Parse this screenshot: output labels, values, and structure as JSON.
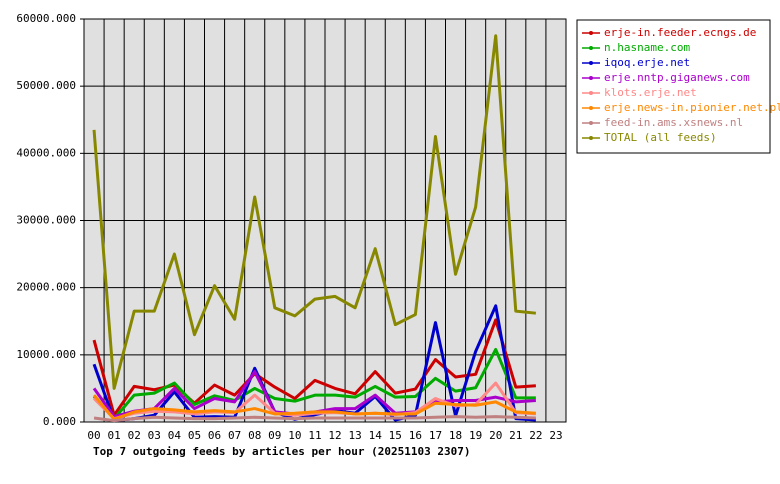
{
  "chart_data": {
    "type": "line",
    "title": "Top 7 outgoing feeds by articles per hour (20251103 2307)",
    "categories": [
      "00",
      "01",
      "02",
      "03",
      "04",
      "05",
      "06",
      "07",
      "08",
      "09",
      "10",
      "11",
      "12",
      "13",
      "14",
      "15",
      "16",
      "17",
      "18",
      "19",
      "20",
      "21",
      "22",
      "23"
    ],
    "ylim": [
      0,
      60000
    ],
    "yticks": [
      {
        "value": 0,
        "label": "0.000"
      },
      {
        "value": 10000,
        "label": "10000.000"
      },
      {
        "value": 20000,
        "label": "20000.000"
      },
      {
        "value": 30000,
        "label": "30000.000"
      },
      {
        "value": 40000,
        "label": "40000.000"
      },
      {
        "value": 50000,
        "label": "50000.000"
      },
      {
        "value": 60000,
        "label": "60000.000"
      }
    ],
    "grid": true,
    "series": [
      {
        "name": "erje-in.feeder.ecngs.de",
        "color": "#cc0000",
        "values": [
          12200,
          1000,
          5300,
          4800,
          5500,
          2800,
          5500,
          4000,
          7200,
          5200,
          3500,
          6200,
          5000,
          4200,
          7500,
          4300,
          4900,
          9300,
          6700,
          7100,
          15200,
          5200,
          5400,
          null
        ]
      },
      {
        "name": "n.hasname.com",
        "color": "#00aa00",
        "values": [
          3800,
          500,
          4000,
          4300,
          5800,
          2600,
          3900,
          3200,
          5000,
          3500,
          3100,
          4000,
          4000,
          3700,
          5300,
          3700,
          3800,
          6500,
          4600,
          5100,
          10800,
          3600,
          3600,
          null
        ]
      },
      {
        "name": "iqoq.erje.net",
        "color": "#0000cc",
        "values": [
          8600,
          200,
          500,
          1000,
          4500,
          700,
          800,
          700,
          8000,
          1500,
          400,
          1100,
          1700,
          1300,
          3800,
          300,
          1000,
          14800,
          900,
          10500,
          17300,
          500,
          300,
          null
        ]
      },
      {
        "name": "erje.nntp.giganews.com",
        "color": "#aa00cc",
        "values": [
          5000,
          800,
          1600,
          2000,
          5000,
          2000,
          3500,
          3000,
          7500,
          1500,
          1200,
          1500,
          2000,
          2000,
          4000,
          1300,
          1500,
          3000,
          3200,
          3200,
          3700,
          3000,
          3200,
          null
        ]
      },
      {
        "name": "klots.erje.net",
        "color": "#ff8888",
        "values": [
          3500,
          500,
          1300,
          1600,
          1500,
          1200,
          1500,
          1400,
          4000,
          1300,
          1000,
          1300,
          1400,
          1200,
          1300,
          1100,
          1400,
          3500,
          2400,
          2600,
          5800,
          1400,
          1200,
          null
        ]
      },
      {
        "name": "erje.news-in.pionier.net.pl",
        "color": "#ff8800",
        "values": [
          4000,
          400,
          1500,
          2000,
          1800,
          1500,
          1700,
          1500,
          2000,
          1200,
          1300,
          1500,
          1500,
          1200,
          1300,
          1200,
          1200,
          2800,
          2600,
          2500,
          3000,
          1500,
          1300,
          null
        ]
      },
      {
        "name": "feed-in.ams.xsnews.nl",
        "color": "#c08080",
        "values": [
          600,
          200,
          500,
          700,
          600,
          500,
          500,
          600,
          700,
          600,
          500,
          600,
          600,
          600,
          600,
          600,
          600,
          700,
          800,
          700,
          800,
          700,
          600,
          null
        ]
      },
      {
        "name": "TOTAL (all feeds)",
        "color": "#888800",
        "values": [
          43500,
          5000,
          16500,
          16500,
          25000,
          13000,
          20300,
          15300,
          33500,
          17000,
          15800,
          18300,
          18700,
          17000,
          25800,
          14500,
          16000,
          42500,
          22000,
          32000,
          57500,
          16500,
          16200,
          null
        ]
      }
    ]
  }
}
